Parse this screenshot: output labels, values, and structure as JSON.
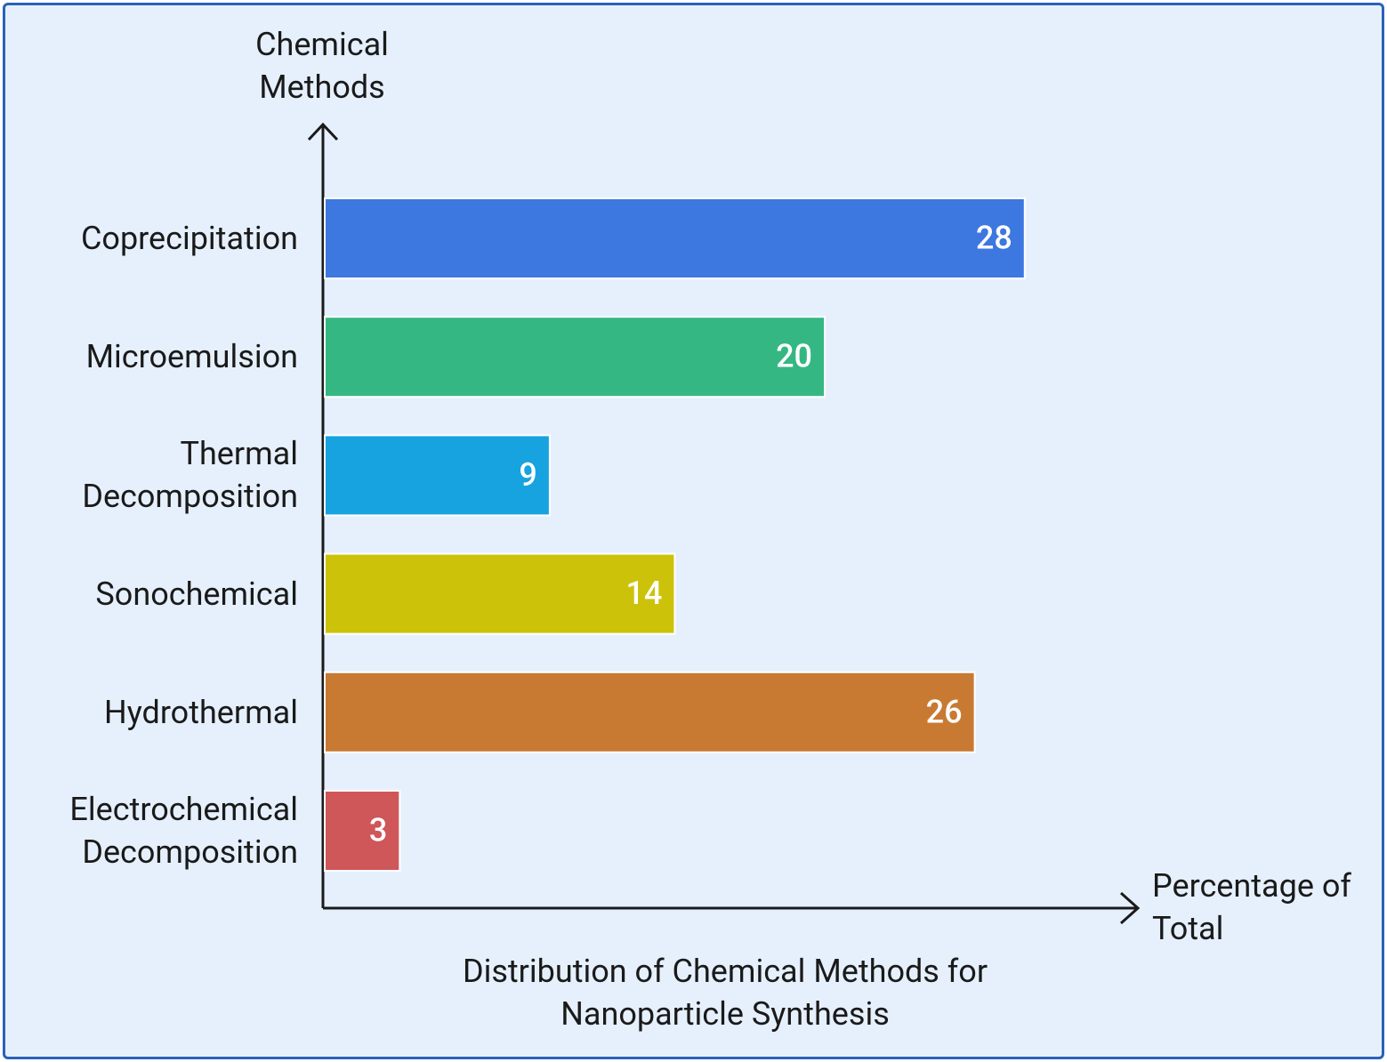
{
  "chart_data": {
    "type": "bar",
    "orientation": "horizontal",
    "title": "Distribution of Chemical Methods for Nanoparticle Synthesis",
    "y_label": "Chemical Methods",
    "x_label": "Percentage of Total",
    "categories": [
      "Coprecipitation",
      "Microemulsion",
      "Thermal Decomposition",
      "Sonochemical",
      "Hydrothermal",
      "Electrochemical Decomposition"
    ],
    "values": [
      28,
      20,
      9,
      14,
      26,
      3
    ],
    "colors": [
      "#3d78e0",
      "#35b784",
      "#16a3e0",
      "#cdc20a",
      "#c87a33",
      "#cf5659"
    ]
  }
}
